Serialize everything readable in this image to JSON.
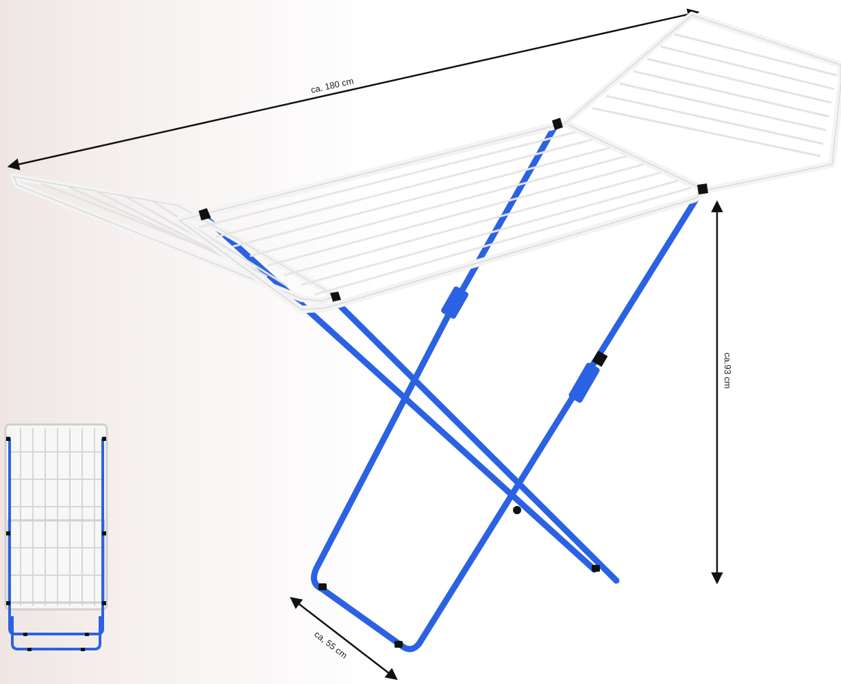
{
  "dimensions": {
    "length_label": "ca. 180 cm",
    "height_label": "ca.93 cm",
    "depth_label": "ca, 55 cm"
  },
  "colors": {
    "frame_blue": "#2b62e3",
    "rail_white": "#f3f3f3",
    "rail_outline": "#c9c9c9",
    "joint_black": "#111111",
    "arrow": "#111111"
  },
  "thumbnail": {
    "description_icon": "folded-dryer-thumbnail"
  }
}
